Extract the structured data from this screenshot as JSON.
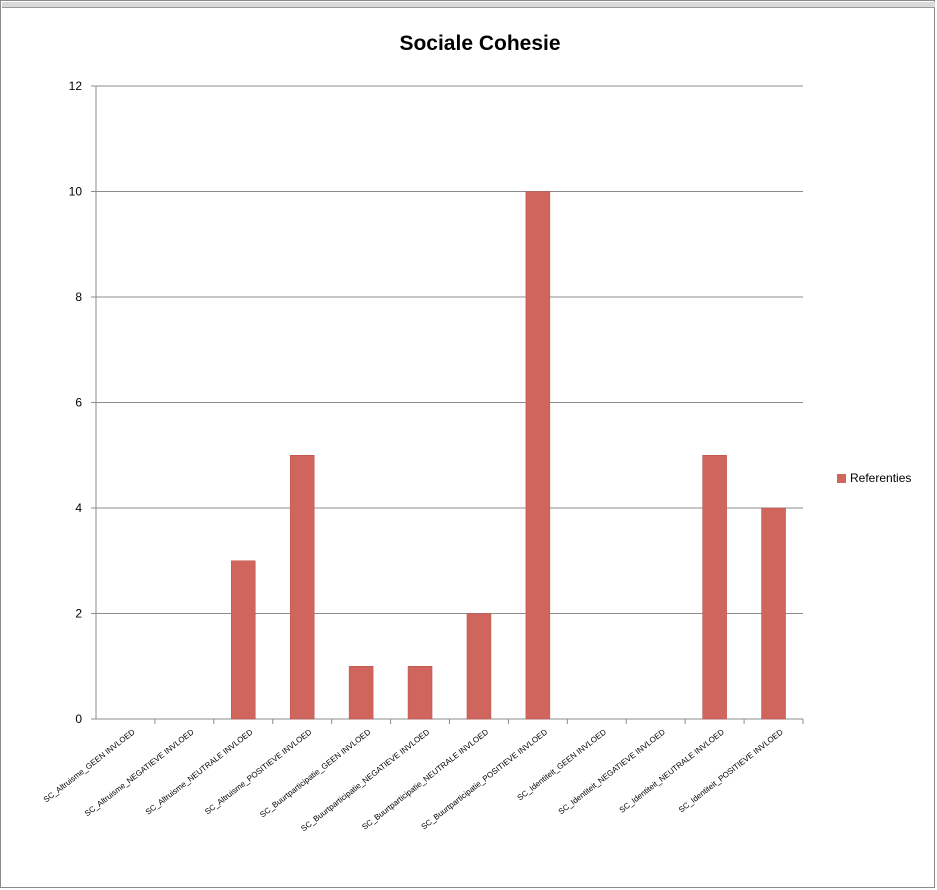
{
  "chart_data": {
    "type": "bar",
    "title": "Sociale Cohesie",
    "xlabel": "",
    "ylabel": "",
    "ylim": [
      0,
      12
    ],
    "yticks": [
      "0",
      "2",
      "4",
      "6",
      "8",
      "10",
      "12"
    ],
    "grid": true,
    "legend_position": "right",
    "categories": [
      "SC_Altruisme_GEEN INVLOED",
      "SC_Altruisme_NEGATIEVE INVLOED",
      "SC_Altruisme_NEUTRALE INVLOED",
      "SC_Altruisme_POSITIEVE INVLOED",
      "SC_Buurtparticipatie_GEEN INVLOED",
      "SC_Buurtparticipatie_NEGATIEVE INVLOED",
      "SC_Buurtparticipatie_NEUTRALE INVLOED",
      "SC_Buurtparticipatie_POSITIEVE INVLOED",
      "SC_Identiteit_GEEN INVLOED",
      "SC_Identiteit_NEGATIEVE INVLOED",
      "SC_Identiteit_NEUTRALE INVLOED",
      "SC_Identiteit_POSITIEVE INVLOED"
    ],
    "series": [
      {
        "name": "Referenties",
        "color": "#d0655e",
        "values": [
          0,
          0,
          3,
          5,
          1,
          1,
          2,
          10,
          0,
          0,
          5,
          4
        ]
      }
    ]
  }
}
